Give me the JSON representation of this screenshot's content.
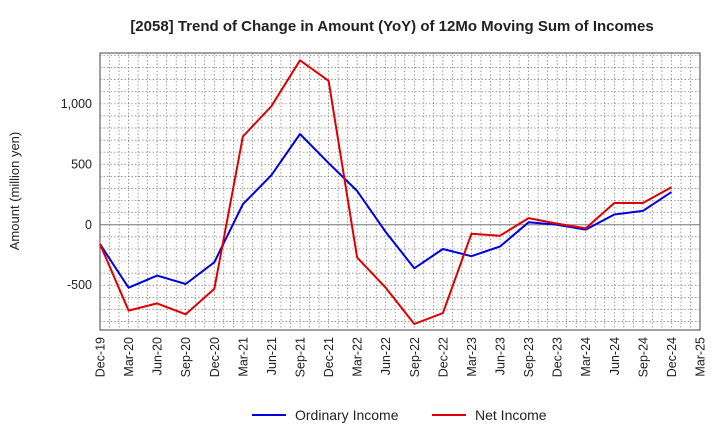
{
  "chart_data": {
    "type": "line",
    "title": "[2058]  Trend of Change in Amount (YoY) of 12Mo Moving Sum of Incomes",
    "xlabel": "",
    "ylabel": "Amount (million yen)",
    "ylim": [
      -870,
      1420
    ],
    "yticks": [
      -500,
      0,
      500,
      1000
    ],
    "ytick_labels": [
      "-500",
      "0",
      "500",
      "1,000"
    ],
    "x": [
      "Dec-19",
      "Mar-20",
      "Jun-20",
      "Sep-20",
      "Dec-20",
      "Mar-21",
      "Jun-21",
      "Sep-21",
      "Dec-21",
      "Mar-22",
      "Jun-22",
      "Sep-22",
      "Dec-22",
      "Mar-23",
      "Jun-23",
      "Sep-23",
      "Dec-23",
      "Mar-24",
      "Jun-24",
      "Sep-24",
      "Dec-24",
      "Mar-25"
    ],
    "grid": true,
    "legend_position": "bottom",
    "series": [
      {
        "name": "Ordinary Income",
        "color": "#0000dd",
        "values": [
          -160,
          -520,
          -420,
          -490,
          -310,
          170,
          410,
          750,
          510,
          280,
          -60,
          -360,
          -200,
          -260,
          -180,
          20,
          0,
          -40,
          85,
          115,
          270,
          null
        ]
      },
      {
        "name": "Net Income",
        "color": "#dd0000",
        "values": [
          -160,
          -710,
          -650,
          -740,
          -530,
          730,
          980,
          1360,
          1190,
          -270,
          -520,
          -820,
          -730,
          -75,
          -90,
          55,
          10,
          -30,
          180,
          180,
          310,
          null
        ]
      }
    ]
  }
}
